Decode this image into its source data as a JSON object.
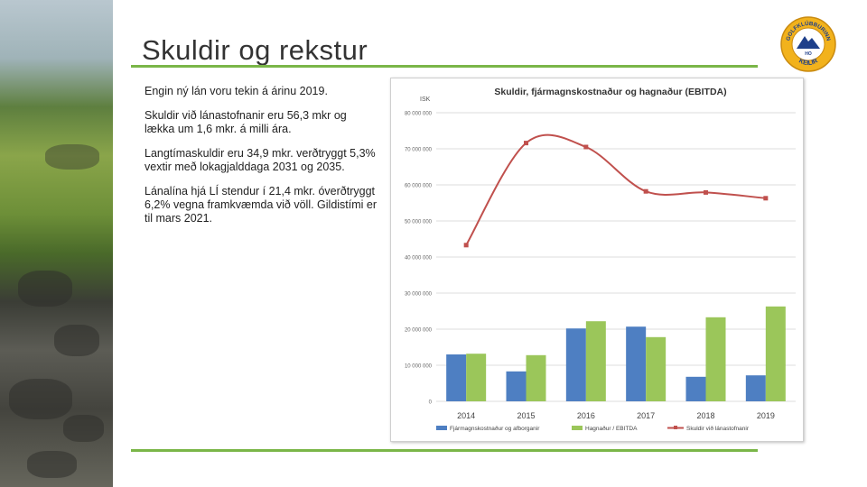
{
  "slide": {
    "title": "Skuldir og rekstur",
    "bullets": [
      "Engin ný lán voru tekin á árinu 2019.",
      "Skuldir við lánastofnanir eru 56,3 mkr og lækka um 1,6 mkr. á milli ára.",
      "Langtímaskuldir eru 34,9 mkr. verðtryggt 5,3% vextir með lokagjalddaga 2031 og 2035.",
      "Lánalína hjá LÍ stendur í 21,4 mkr. óverðtryggt 6,2% vegna framkvæmda við völl. Gildistími er til mars 2021."
    ],
    "accent_color": "#7ab648"
  },
  "logo": {
    "top_text": "GOLFKLÚBBURINN",
    "bottom_text": "KEILIR",
    "badge": "HO"
  },
  "chart_data": {
    "type": "bar",
    "title": "Skuldir, fjármagnskostnaður og hagnaður (EBITDA)",
    "ylabel": "ISK",
    "categories": [
      "2014",
      "2015",
      "2016",
      "2017",
      "2018",
      "2019"
    ],
    "ylim": [
      0,
      80000000
    ],
    "yticks": [
      0,
      10000000,
      20000000,
      30000000,
      40000000,
      50000000,
      60000000,
      70000000,
      80000000
    ],
    "ytick_labels": [
      "0",
      "10 000 000",
      "20 000 000",
      "30 000 000",
      "40 000 000",
      "50 000 000",
      "60 000 000",
      "70 000 000",
      "80 000 000"
    ],
    "legend_position": "bottom",
    "series": [
      {
        "name": "Fjármagnskostnaður og afborganir",
        "type": "bar",
        "color": "#4e7fc2",
        "values": [
          13000000,
          8300000,
          20200000,
          20700000,
          6800000,
          7200000
        ]
      },
      {
        "name": "Hagnaður / EBITDA",
        "type": "bar",
        "color": "#9bc65a",
        "values": [
          13200000,
          12800000,
          22200000,
          17800000,
          23300000,
          26300000
        ]
      },
      {
        "name": "Skuldir við lánastofnanir",
        "type": "line",
        "color": "#c0504d",
        "values": [
          43300000,
          71600000,
          70500000,
          58200000,
          57900000,
          56300000
        ]
      }
    ]
  }
}
